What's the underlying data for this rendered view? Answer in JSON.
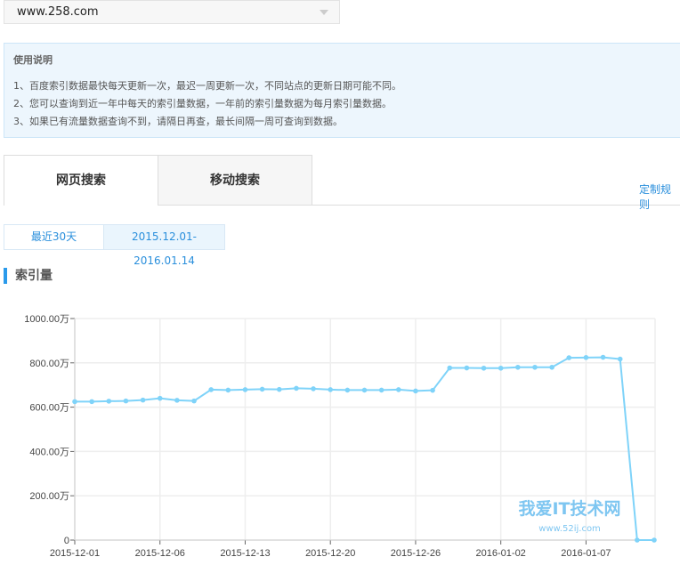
{
  "site_select": {
    "value": "www.258.com"
  },
  "notice": {
    "title": "使用说明",
    "lines": [
      "1、百度索引数据最快每天更新一次，最迟一周更新一次，不同站点的更新日期可能不同。",
      "2、您可以查询到近一年中每天的索引量数据，一年前的索引量数据为每月索引量数据。",
      "3、如果已有流量数据查询不到，请隔日再查，最长间隔一周可查询到数据。"
    ]
  },
  "tabs": [
    {
      "label": "网页搜索",
      "active": true
    },
    {
      "label": "移动搜索",
      "active": false
    }
  ],
  "custom_rule_link": "定制规则",
  "range": {
    "recent": "最近30天",
    "custom": "2015.12.01-2016.01.14"
  },
  "section_title": "索引量",
  "colors": {
    "line": "#7fd3f9",
    "accent": "#2a8fdc"
  },
  "watermark": {
    "text": "我爱IT技术网",
    "url": "www.52ij.com"
  },
  "chart_data": {
    "type": "line",
    "ylim": [
      0,
      1000
    ],
    "yticks": [
      "0",
      "200.00万",
      "400.00万",
      "600.00万",
      "800.00万",
      "1000.00万"
    ],
    "ytick_values": [
      0,
      200,
      400,
      600,
      800,
      1000
    ],
    "unit": "万",
    "grid": true,
    "xtick_labels": [
      {
        "index": 0,
        "label": "2015-12-01"
      },
      {
        "index": 5,
        "label": "2015-12-06"
      },
      {
        "index": 10,
        "label": "2015-12-13"
      },
      {
        "index": 15,
        "label": "2015-12-20"
      },
      {
        "index": 20,
        "label": "2015-12-26"
      },
      {
        "index": 25,
        "label": "2016-01-02"
      },
      {
        "index": 30,
        "label": "2016-01-07"
      }
    ],
    "values": [
      625,
      625,
      627,
      628,
      632,
      640,
      631,
      628,
      679,
      677,
      679,
      681,
      680,
      685,
      683,
      679,
      677,
      677,
      677,
      679,
      673,
      676,
      777,
      777,
      776,
      776,
      780,
      780,
      780,
      823,
      824,
      825,
      817,
      0,
      0
    ]
  }
}
